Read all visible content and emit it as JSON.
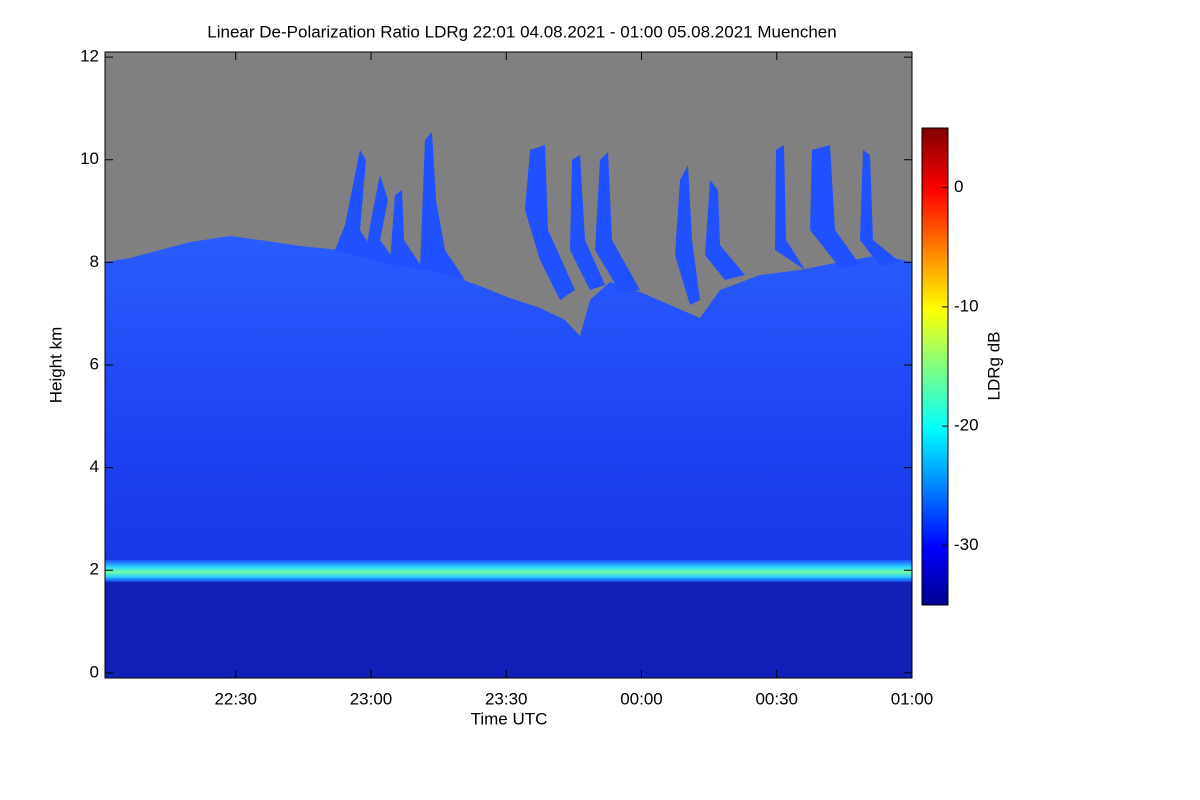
{
  "chart_data": {
    "type": "heatmap",
    "title": "Linear De-Polarization Ratio LDRg   22:01 04.08.2021 - 01:00 05.08.2021 Muenchen",
    "xlabel": "Time UTC",
    "ylabel": "Height km",
    "colorbar_label": "LDRg dB",
    "xlim": [
      22.0167,
      25.0
    ],
    "xticks": [
      {
        "value": 22.5,
        "label": "22:30"
      },
      {
        "value": 23.0,
        "label": "23:00"
      },
      {
        "value": 23.5,
        "label": "23:30"
      },
      {
        "value": 24.0,
        "label": "00:00"
      },
      {
        "value": 24.5,
        "label": "00:30"
      },
      {
        "value": 25.0,
        "label": "01:00"
      }
    ],
    "ylim": [
      -0.1,
      12.1
    ],
    "yticks": [
      0,
      2,
      4,
      6,
      8,
      10,
      12
    ],
    "clim": [
      -35,
      5
    ],
    "cticks": [
      0,
      -10,
      -20,
      -30
    ],
    "colormap": "jet"
  }
}
